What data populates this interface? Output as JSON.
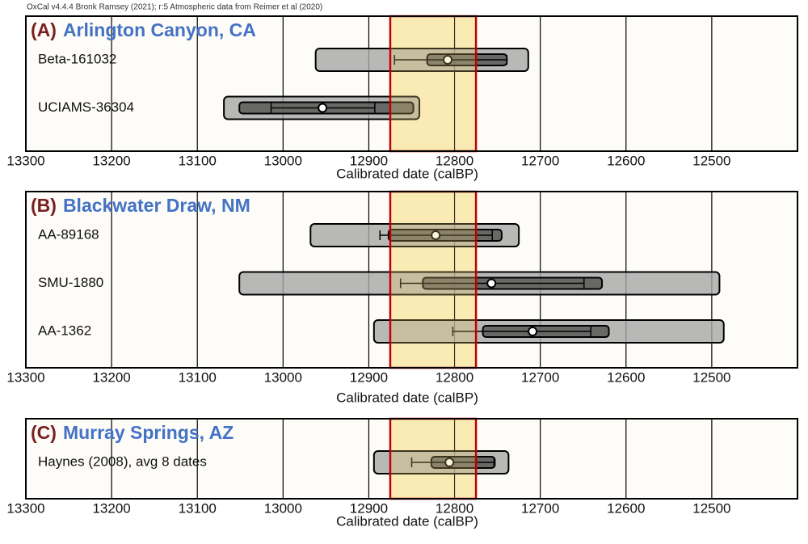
{
  "credit": "OxCal v4.4.4 Bronk Ramsey (2021); r:5 Atmospheric data from Reimer et al (2020)",
  "chart_data": [
    {
      "type": "range",
      "label": "(A)",
      "title": "Arlington Canyon, CA",
      "xlabel": "Calibrated date (calBP)",
      "xlim": [
        13300,
        12400
      ],
      "xticks": [
        13300,
        13200,
        13100,
        13000,
        12900,
        12800,
        12700,
        12600,
        12500
      ],
      "highlight": [
        12875,
        12775
      ],
      "samples": [
        {
          "name": "Beta-161032",
          "range": [
            12962,
            12714
          ],
          "inner": [
            12832,
            12739
          ],
          "whisker": [
            12870,
            12739
          ],
          "median": 12808
        },
        {
          "name": "UCIAMS-36304",
          "range": [
            13069,
            12841
          ],
          "inner": [
            13051,
            12848
          ],
          "whisker": [
            13014,
            12893
          ],
          "median": 12954
        }
      ]
    },
    {
      "type": "range",
      "label": "(B)",
      "title": "Blackwater Draw, NM",
      "xlabel": "Calibrated date (calBP)",
      "xlim": [
        13300,
        12400
      ],
      "xticks": [
        13300,
        13200,
        13100,
        13000,
        12900,
        12800,
        12700,
        12600,
        12500
      ],
      "highlight": [
        12875,
        12775
      ],
      "samples": [
        {
          "name": "AA-89168",
          "range": [
            12968,
            12725
          ],
          "inner": [
            12877,
            12745
          ],
          "whisker": [
            12887,
            12756
          ],
          "median": 12822
        },
        {
          "name": "SMU-1880",
          "range": [
            13051,
            12491
          ],
          "inner": [
            12837,
            12628
          ],
          "whisker": [
            12863,
            12649
          ],
          "median": 12757
        },
        {
          "name": "AA-1362",
          "range": [
            12894,
            12486
          ],
          "inner": [
            12767,
            12620
          ],
          "whisker": [
            12802,
            12641
          ],
          "median": 12709
        }
      ]
    },
    {
      "type": "range",
      "label": "(C)",
      "title": "Murray Springs, AZ",
      "xlabel": "Calibrated date (calBP)",
      "xlim": [
        13300,
        12400
      ],
      "xticks": [
        13300,
        13200,
        13100,
        13000,
        12900,
        12800,
        12700,
        12600,
        12500
      ],
      "highlight": [
        12875,
        12775
      ],
      "samples": [
        {
          "name": "Haynes (2008), avg 8 dates",
          "range": [
            12894,
            12737
          ],
          "inner": [
            12827,
            12753
          ],
          "whisker": [
            12850,
            12754
          ],
          "median": 12806
        }
      ]
    }
  ]
}
